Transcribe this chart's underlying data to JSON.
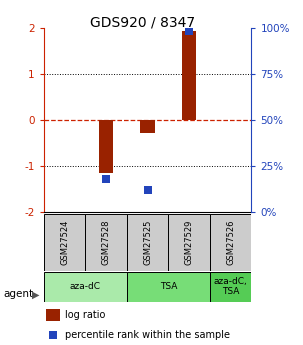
{
  "title": "GDS920 / 8347",
  "samples": [
    "GSM27524",
    "GSM27528",
    "GSM27525",
    "GSM27529",
    "GSM27526"
  ],
  "log_ratio": [
    0.0,
    -1.15,
    -0.28,
    1.92,
    0.0
  ],
  "percentile_rank": [
    null,
    18.0,
    12.0,
    98.0,
    null
  ],
  "agents": [
    {
      "label": "aza-dC",
      "start": 0,
      "end": 1,
      "color": "#aaeaaa"
    },
    {
      "label": "TSA",
      "start": 2,
      "end": 3,
      "color": "#77dd77"
    },
    {
      "label": "aza-dC,\nTSA",
      "start": 4,
      "end": 4,
      "color": "#55cc55"
    }
  ],
  "bar_color": "#992200",
  "dot_color": "#2244bb",
  "ylim": [
    -2.0,
    2.0
  ],
  "y2lim": [
    0,
    100
  ],
  "yticks_left": [
    -2,
    -1,
    0,
    1,
    2
  ],
  "yticks_right": [
    0,
    25,
    50,
    75,
    100
  ],
  "ytick_labels_right": [
    "0%",
    "25%",
    "50%",
    "75%",
    "100%"
  ],
  "zero_line_color": "#cc2200",
  "sample_box_color": "#cccccc",
  "bar_width": 0.35,
  "dot_size": 30,
  "legend_red_label": "log ratio",
  "legend_blue_label": "percentile rank within the sample"
}
